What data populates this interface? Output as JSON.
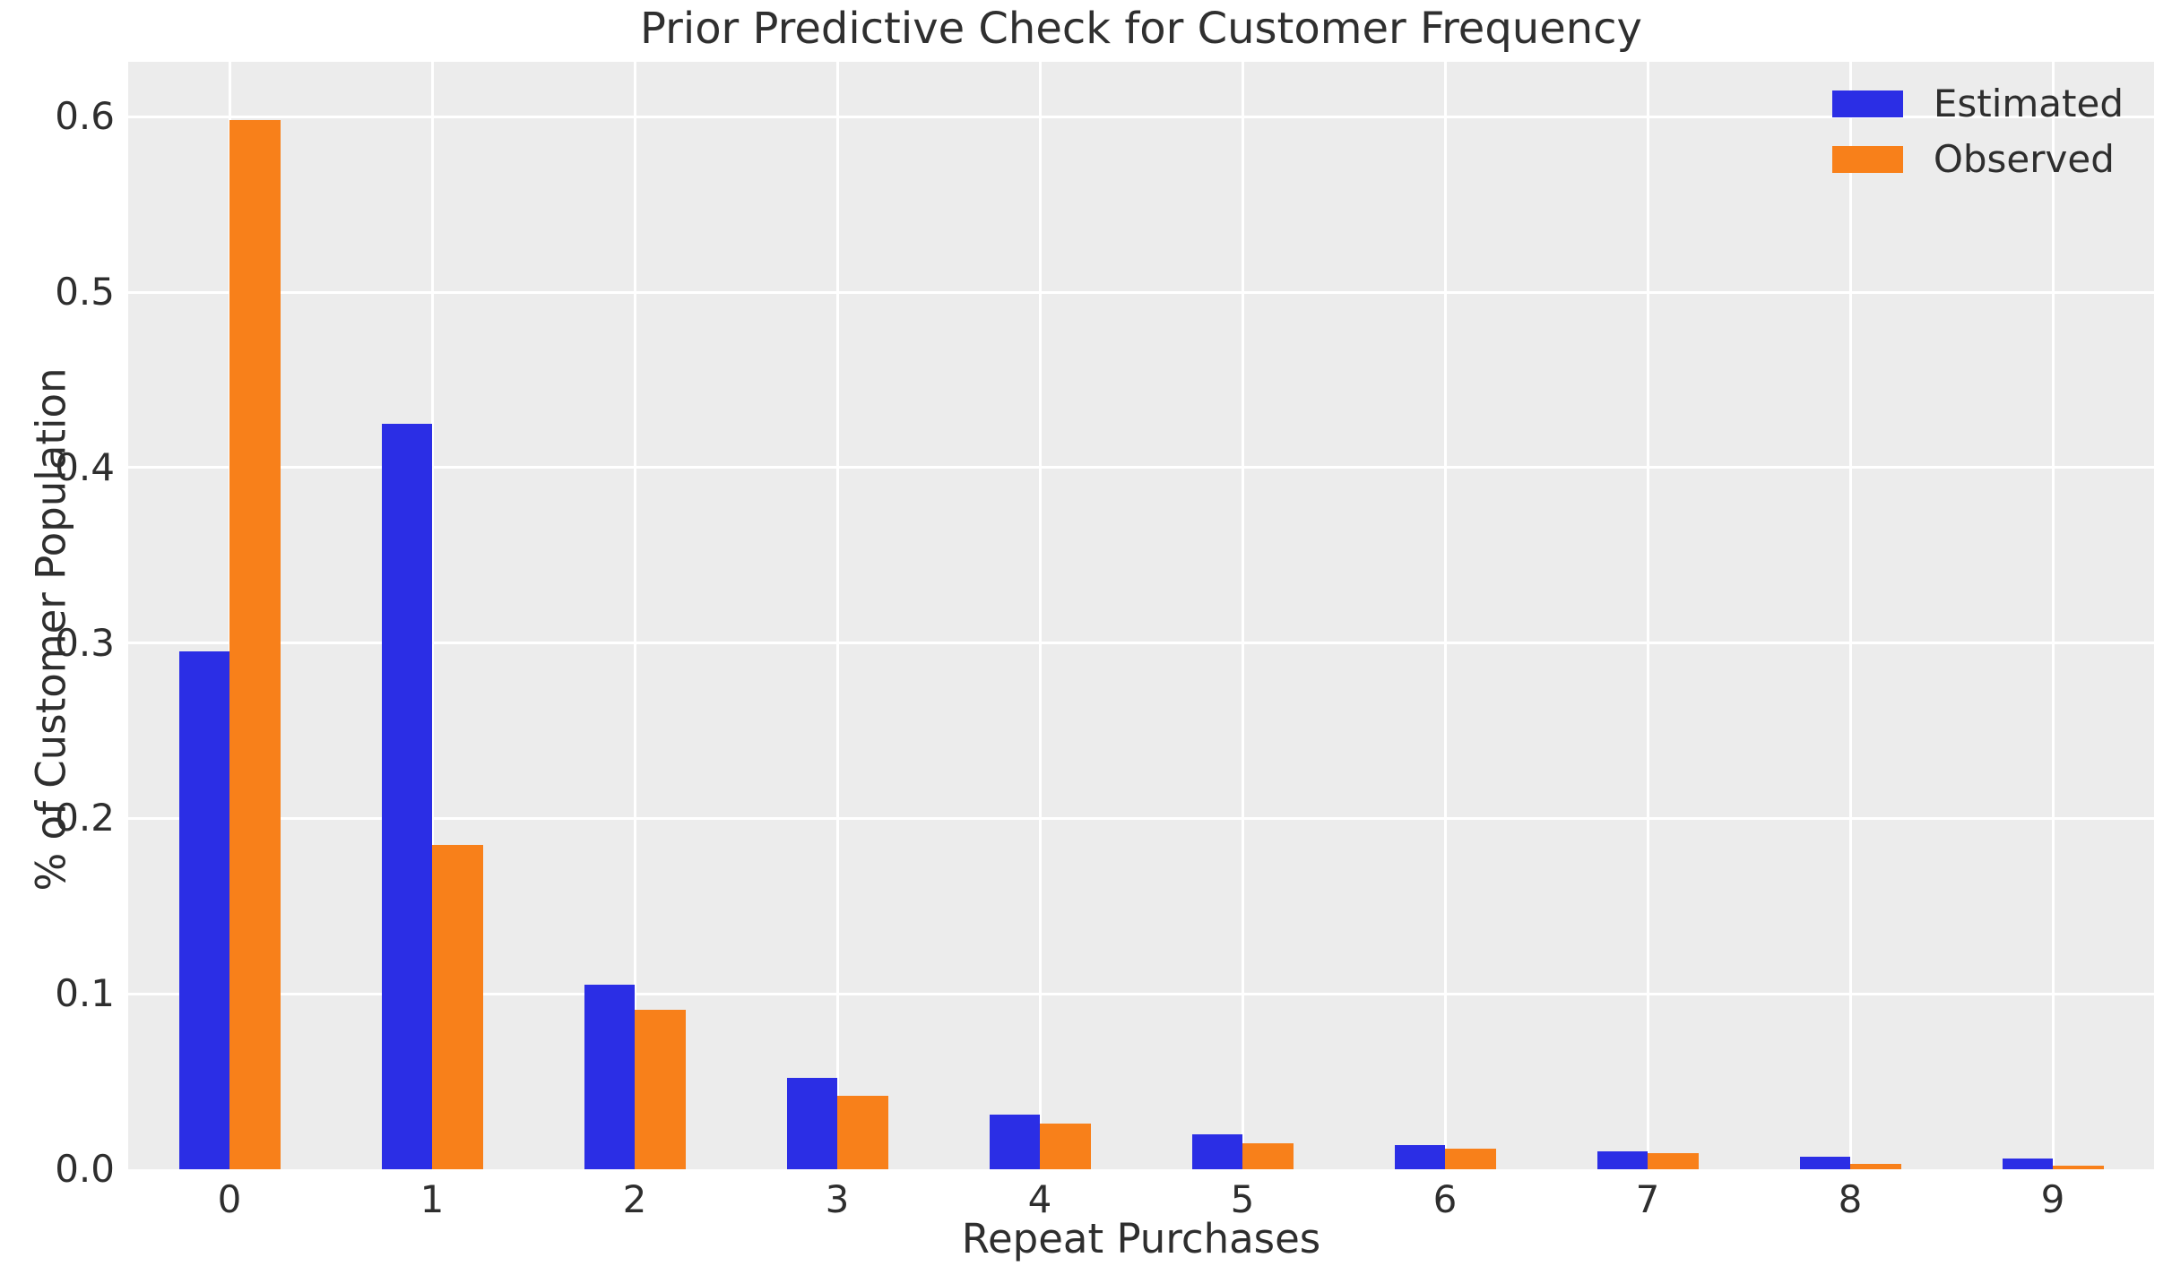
{
  "title": "Prior Predictive Check for Customer Frequency",
  "chart_data": {
    "type": "bar",
    "title": "Prior Predictive Check for Customer Frequency",
    "xlabel": "Repeat Purchases",
    "ylabel": "% of Customer Population",
    "categories": [
      "0",
      "1",
      "2",
      "3",
      "4",
      "5",
      "6",
      "7",
      "8",
      "9"
    ],
    "series": [
      {
        "name": "Estimated",
        "color": "#2b2ee5",
        "values": [
          0.295,
          0.425,
          0.105,
          0.052,
          0.031,
          0.02,
          0.014,
          0.01,
          0.007,
          0.006
        ]
      },
      {
        "name": "Observed",
        "color": "#f8801a",
        "values": [
          0.598,
          0.185,
          0.091,
          0.042,
          0.026,
          0.015,
          0.012,
          0.009,
          0.003,
          0.002
        ]
      }
    ],
    "y_ticks": [
      0.0,
      0.1,
      0.2,
      0.3,
      0.4,
      0.5,
      0.6
    ],
    "y_tick_labels": [
      "0.0",
      "0.1",
      "0.2",
      "0.3",
      "0.4",
      "0.5",
      "0.6"
    ],
    "ylim": [
      0,
      0.6313
    ],
    "xlim": [
      -0.5,
      9.5
    ],
    "bar_width_units": 0.25,
    "grid": true,
    "legend_position": "upper right",
    "styles": {
      "figure_bg": "#ffffff",
      "plot_bg": "#ececec",
      "grid_color": "#ffffff",
      "text_color": "#2e2e2e",
      "title_color": "#2f2f2f"
    }
  },
  "legend": {
    "items": [
      {
        "label": "Estimated",
        "color": "#2b2ee5"
      },
      {
        "label": "Observed",
        "color": "#f8801a"
      }
    ]
  }
}
